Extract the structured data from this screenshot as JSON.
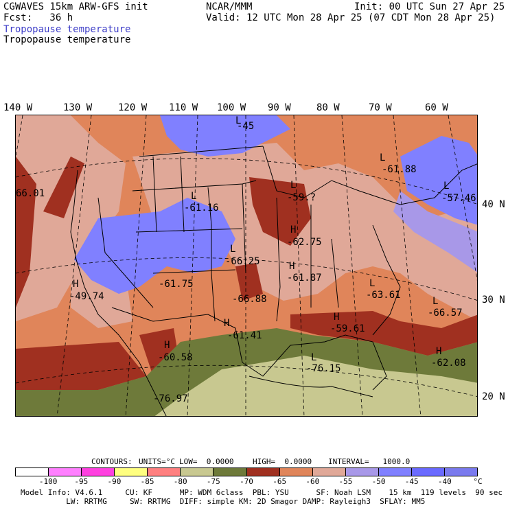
{
  "header": {
    "left_line1": "CGWAVES 15km ARW-GFS init",
    "center_line1": "NCAR/MMM",
    "right_line1": "Init: 00 UTC Sun 27 Apr 25",
    "left_line2": "Fcst:   36 h",
    "right_line2": "Valid: 12 UTC Mon 28 Apr 25 (07 CDT Mon 28 Apr 25)",
    "field_title_blue": "Tropopause temperature",
    "field_title_black": "Tropopause temperature"
  },
  "longitude_labels": [
    "140 W",
    "130 W",
    "120 W",
    "110 W",
    "100 W",
    "90 W",
    "80 W",
    "70 W",
    "60 W"
  ],
  "latitude_labels": [
    "40 N",
    "30 N",
    "20 N"
  ],
  "pressure_centers": [
    {
      "letter": "L",
      "value": "-45"
    },
    {
      "letter": "L",
      "value": "-61.88"
    },
    {
      "letter": "L",
      "value": "-57.46"
    },
    {
      "letter": "",
      "value": "66.01"
    },
    {
      "letter": "L",
      "value": "-61.16"
    },
    {
      "letter": "L",
      "value": "-59.?"
    },
    {
      "letter": "H",
      "value": "-62.75"
    },
    {
      "letter": "L",
      "value": "-66.25"
    },
    {
      "letter": "H",
      "value": "-61.87"
    },
    {
      "letter": "L",
      "value": "-63.61"
    },
    {
      "letter": "H",
      "value": "-49.74"
    },
    {
      "letter": "",
      "value": "-61.75"
    },
    {
      "letter": "",
      "value": "-66.88"
    },
    {
      "letter": "L",
      "value": "-66.57"
    },
    {
      "letter": "H",
      "value": "-59.61"
    },
    {
      "letter": "H",
      "value": "-61.41"
    },
    {
      "letter": "H",
      "value": "-60.58"
    },
    {
      "letter": "L",
      "value": "-76.15"
    },
    {
      "letter": "H",
      "value": "-62.08"
    },
    {
      "letter": "",
      "value": "-76.97"
    }
  ],
  "contour_info": {
    "contours": "CONTOURS:",
    "units": "UNITS=°C",
    "low": "LOW=  0.0000",
    "high": "HIGH=  0.0000",
    "interval": "INTERVAL=   1000.0"
  },
  "colorbar": {
    "colors": [
      "#ffffff",
      "#ff80ff",
      "#ff40e0",
      "#ffff80",
      "#ff8080",
      "#c8c890",
      "#6e7a3a",
      "#a03020",
      "#e0855a",
      "#e0a898",
      "#a898e8",
      "#8080ff",
      "#6a6aff",
      "#7a7aee"
    ],
    "labels": [
      "-100",
      "-95",
      "-90",
      "-85",
      "-80",
      "-75",
      "-70",
      "-65",
      "-60",
      "-55",
      "-50",
      "-45",
      "-40",
      "°C"
    ]
  },
  "footer": {
    "line1": "Model Info: V4.6.1     CU: KF      MP: WDM 6class  PBL: YSU      SF: Noah LSM    15 km  119 levels  90 sec",
    "line2": "          LW: RRTMG     SW: RRTMG  DIFF: simple KM: 2D Smagor DAMP: Rayleigh3  SFLAY: MM5"
  }
}
